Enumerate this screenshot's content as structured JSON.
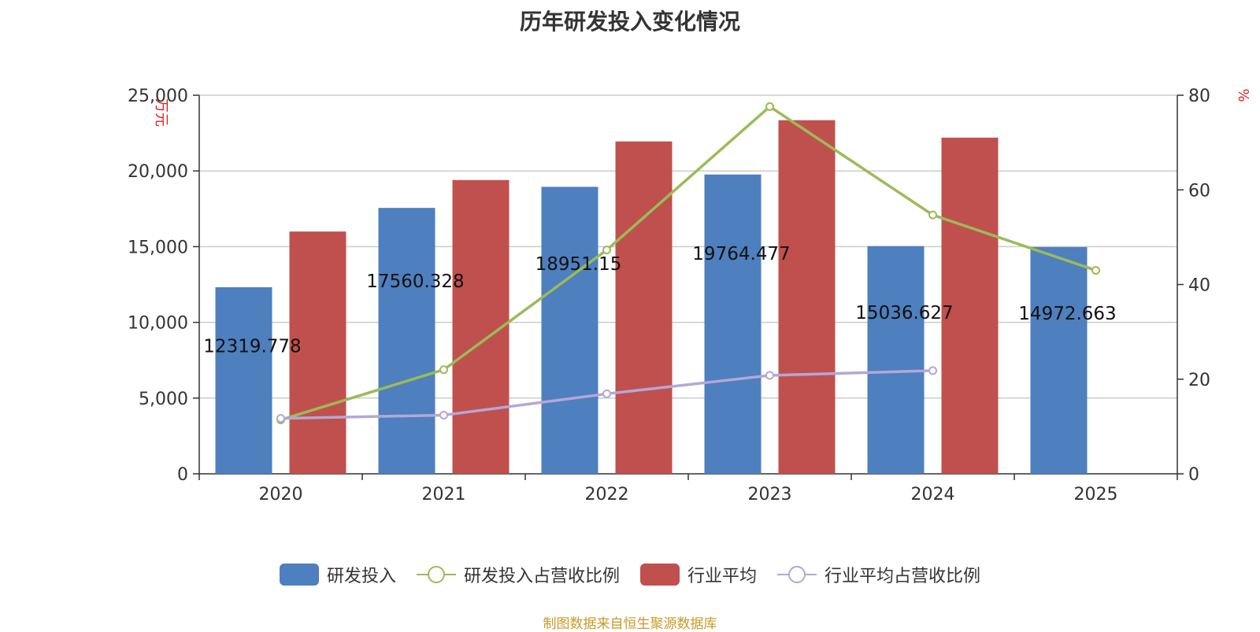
{
  "chart_data": {
    "type": "bar",
    "title": "历年研发投入变化情况",
    "ylabel_left": "万元",
    "ylabel_right": "%",
    "categories": [
      "2020",
      "2021",
      "2022",
      "2023",
      "2024",
      "2025"
    ],
    "y_left_lim": [
      0,
      25000
    ],
    "y_left_ticks": [
      0,
      5000,
      10000,
      15000,
      20000,
      25000
    ],
    "y_left_tick_labels": [
      "0",
      "5,000",
      "10,000",
      "15,000",
      "20,000",
      "25,000"
    ],
    "y_right_lim": [
      0,
      80
    ],
    "y_right_ticks": [
      0,
      20,
      40,
      60,
      80
    ],
    "y_right_tick_labels": [
      "0",
      "20",
      "40",
      "60",
      "80"
    ],
    "grid": true,
    "legend_position": "bottom",
    "series": [
      {
        "name": "研发投入",
        "type": "bar",
        "axis": "left",
        "color": "#4e7fbe",
        "values": [
          12319.778,
          17560.328,
          18951.15,
          19764.477,
          15036.627,
          14972.663
        ],
        "data_labels": [
          "12319.778",
          "17560.328",
          "18951.15",
          "19764.477",
          "15036.627",
          "14972.663"
        ]
      },
      {
        "name": "研发投入占营收比例",
        "type": "line",
        "axis": "right",
        "color": "#9bbb59",
        "values": [
          11.4,
          22,
          47.3,
          77.6,
          54.7,
          43
        ]
      },
      {
        "name": "行业平均",
        "type": "bar",
        "axis": "left",
        "color": "#c0504d",
        "values": [
          16000,
          19400,
          21950,
          23350,
          22200,
          null
        ]
      },
      {
        "name": "行业平均占营收比例",
        "type": "line",
        "axis": "right",
        "color": "#b4a7d6",
        "values": [
          11.7,
          12.4,
          16.9,
          20.8,
          21.8,
          null
        ]
      }
    ]
  },
  "footer": {
    "source_text": "制图数据来自恒生聚源数据库"
  }
}
